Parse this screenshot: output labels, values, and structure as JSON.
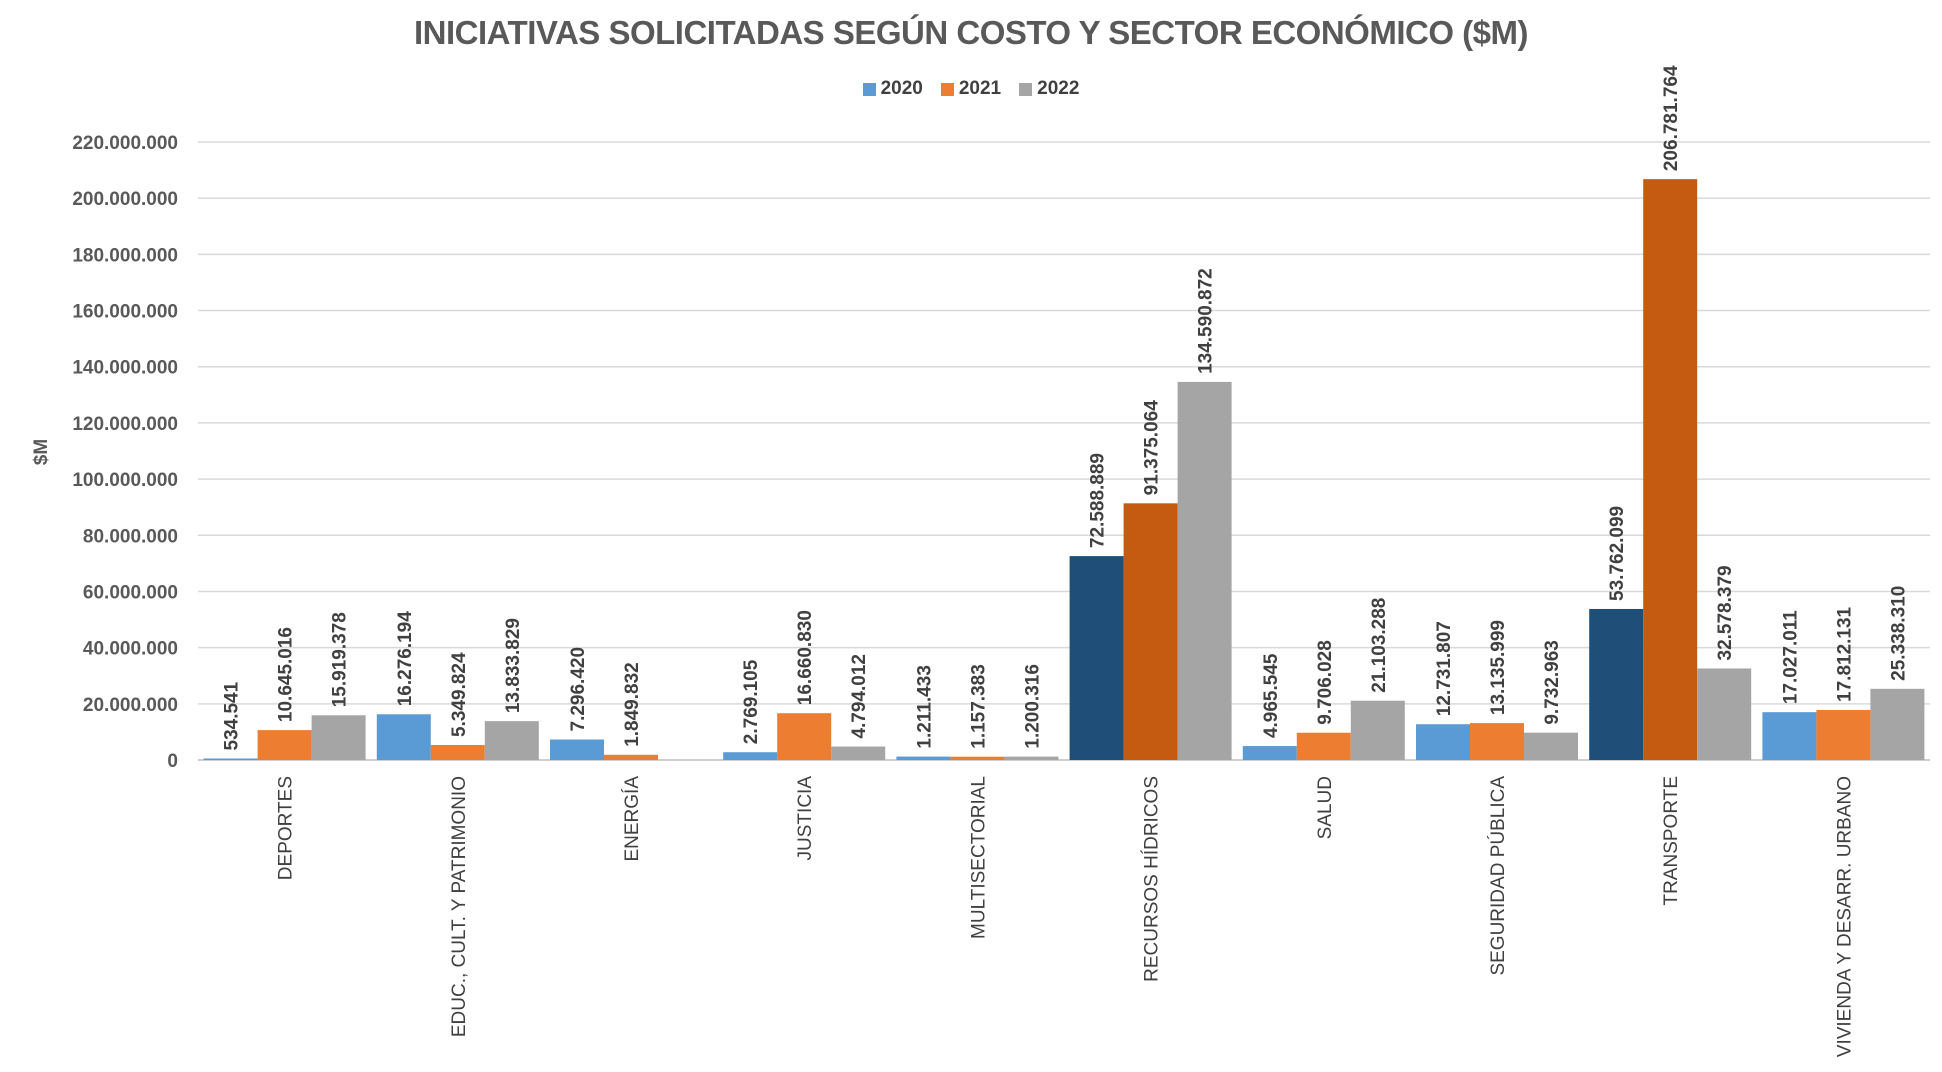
{
  "chart_data": {
    "type": "bar",
    "title": "INICIATIVAS SOLICITADAS SEGÚN COSTO Y SECTOR ECONÓMICO ($M)",
    "xlabel": "",
    "ylabel": "$M",
    "ylim": [
      0,
      220000000
    ],
    "yticks": [
      0,
      20000000,
      40000000,
      60000000,
      80000000,
      100000000,
      120000000,
      140000000,
      160000000,
      180000000,
      200000000,
      220000000
    ],
    "ytick_labels": [
      "0",
      "20.000.000",
      "40.000.000",
      "60.000.000",
      "80.000.000",
      "100.000.000",
      "120.000.000",
      "140.000.000",
      "160.000.000",
      "180.000.000",
      "200.000.000",
      "220.000.000"
    ],
    "grid": true,
    "legend_position": "top-center",
    "categories": [
      "DEPORTES",
      "EDUC., CULT. Y PATRIMONIO",
      "ENERGÍA",
      "JUSTICIA",
      "MULTISECTORIAL",
      "RECURSOS HÍDRICOS",
      "SALUD",
      "SEGURIDAD PÚBLICA",
      "TRANSPORTE",
      "VIVIENDA Y DESARR. URBANO"
    ],
    "highlighted_categories": [
      "RECURSOS HÍDRICOS",
      "TRANSPORTE"
    ],
    "series": [
      {
        "name": "2020",
        "color": "#5b9bd5",
        "highlight_color": "#1f4e79",
        "values": [
          534541,
          16276194,
          7296420,
          2769105,
          1211433,
          72588889,
          4965545,
          12731807,
          53762099,
          17027011
        ],
        "labels": [
          "534.541",
          "16.276.194",
          "7.296.420",
          "2.769.105",
          "1.211.433",
          "72.588.889",
          "4.965.545",
          "12.731.807",
          "53.762.099",
          "17.027.011"
        ]
      },
      {
        "name": "2021",
        "color": "#ed7d31",
        "highlight_color": "#c55a11",
        "values": [
          10645016,
          5349824,
          1849832,
          16660830,
          1157383,
          91375064,
          9706028,
          13135999,
          206781764,
          17812131
        ],
        "labels": [
          "10.645.016",
          "5.349.824",
          "1.849.832",
          "16.660.830",
          "1.157.383",
          "91.375.064",
          "9.706.028",
          "13.135.999",
          "206.781.764",
          "17.812.131"
        ]
      },
      {
        "name": "2022",
        "color": "#a5a5a5",
        "highlight_color": "#a5a5a5",
        "values": [
          15919378,
          13833829,
          null,
          4794012,
          1200316,
          134590872,
          21103288,
          9732963,
          32578379,
          25338310
        ],
        "labels": [
          "15.919.378",
          "13.833.829",
          "",
          "4.794.012",
          "1.200.316",
          "134.590.872",
          "21.103.288",
          "9.732.963",
          "32.578.379",
          "25.338.310"
        ]
      }
    ]
  }
}
